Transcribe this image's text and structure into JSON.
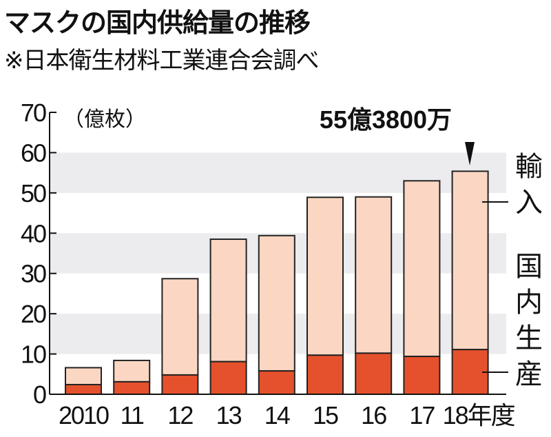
{
  "title": "マスクの国内供給量の推移",
  "subtitle": "※日本衛生材料工業連合会調べ",
  "colors": {
    "import": "#fbd7c3",
    "domestic": "#e5512c",
    "band": "#ececee",
    "outline": "#222222"
  },
  "chart_data": {
    "type": "bar",
    "stacked": true,
    "categories": [
      "2010",
      "11",
      "12",
      "13",
      "14",
      "15",
      "16",
      "17",
      "18年度"
    ],
    "series": [
      {
        "name": "国内生産",
        "values": [
          2.4,
          3.1,
          4.8,
          8.1,
          5.8,
          9.7,
          10.2,
          9.4,
          11.1
        ]
      },
      {
        "name": "輸入",
        "values": [
          4.2,
          5.3,
          23.9,
          30.4,
          33.6,
          39.2,
          38.8,
          43.6,
          44.28
        ]
      }
    ],
    "totals": [
      6.6,
      8.4,
      28.7,
      38.5,
      39.4,
      48.9,
      49.0,
      53.0,
      55.38
    ],
    "ylabel": "（億枚）",
    "ylim": [
      0,
      70
    ],
    "yticks": [
      0,
      10,
      20,
      30,
      40,
      50,
      60,
      70
    ],
    "grid": "alternating horizontal bands",
    "legend": "right",
    "legend_labels": {
      "import": "輸入",
      "domestic": "国内生産"
    },
    "annotation": "55億3800万"
  }
}
